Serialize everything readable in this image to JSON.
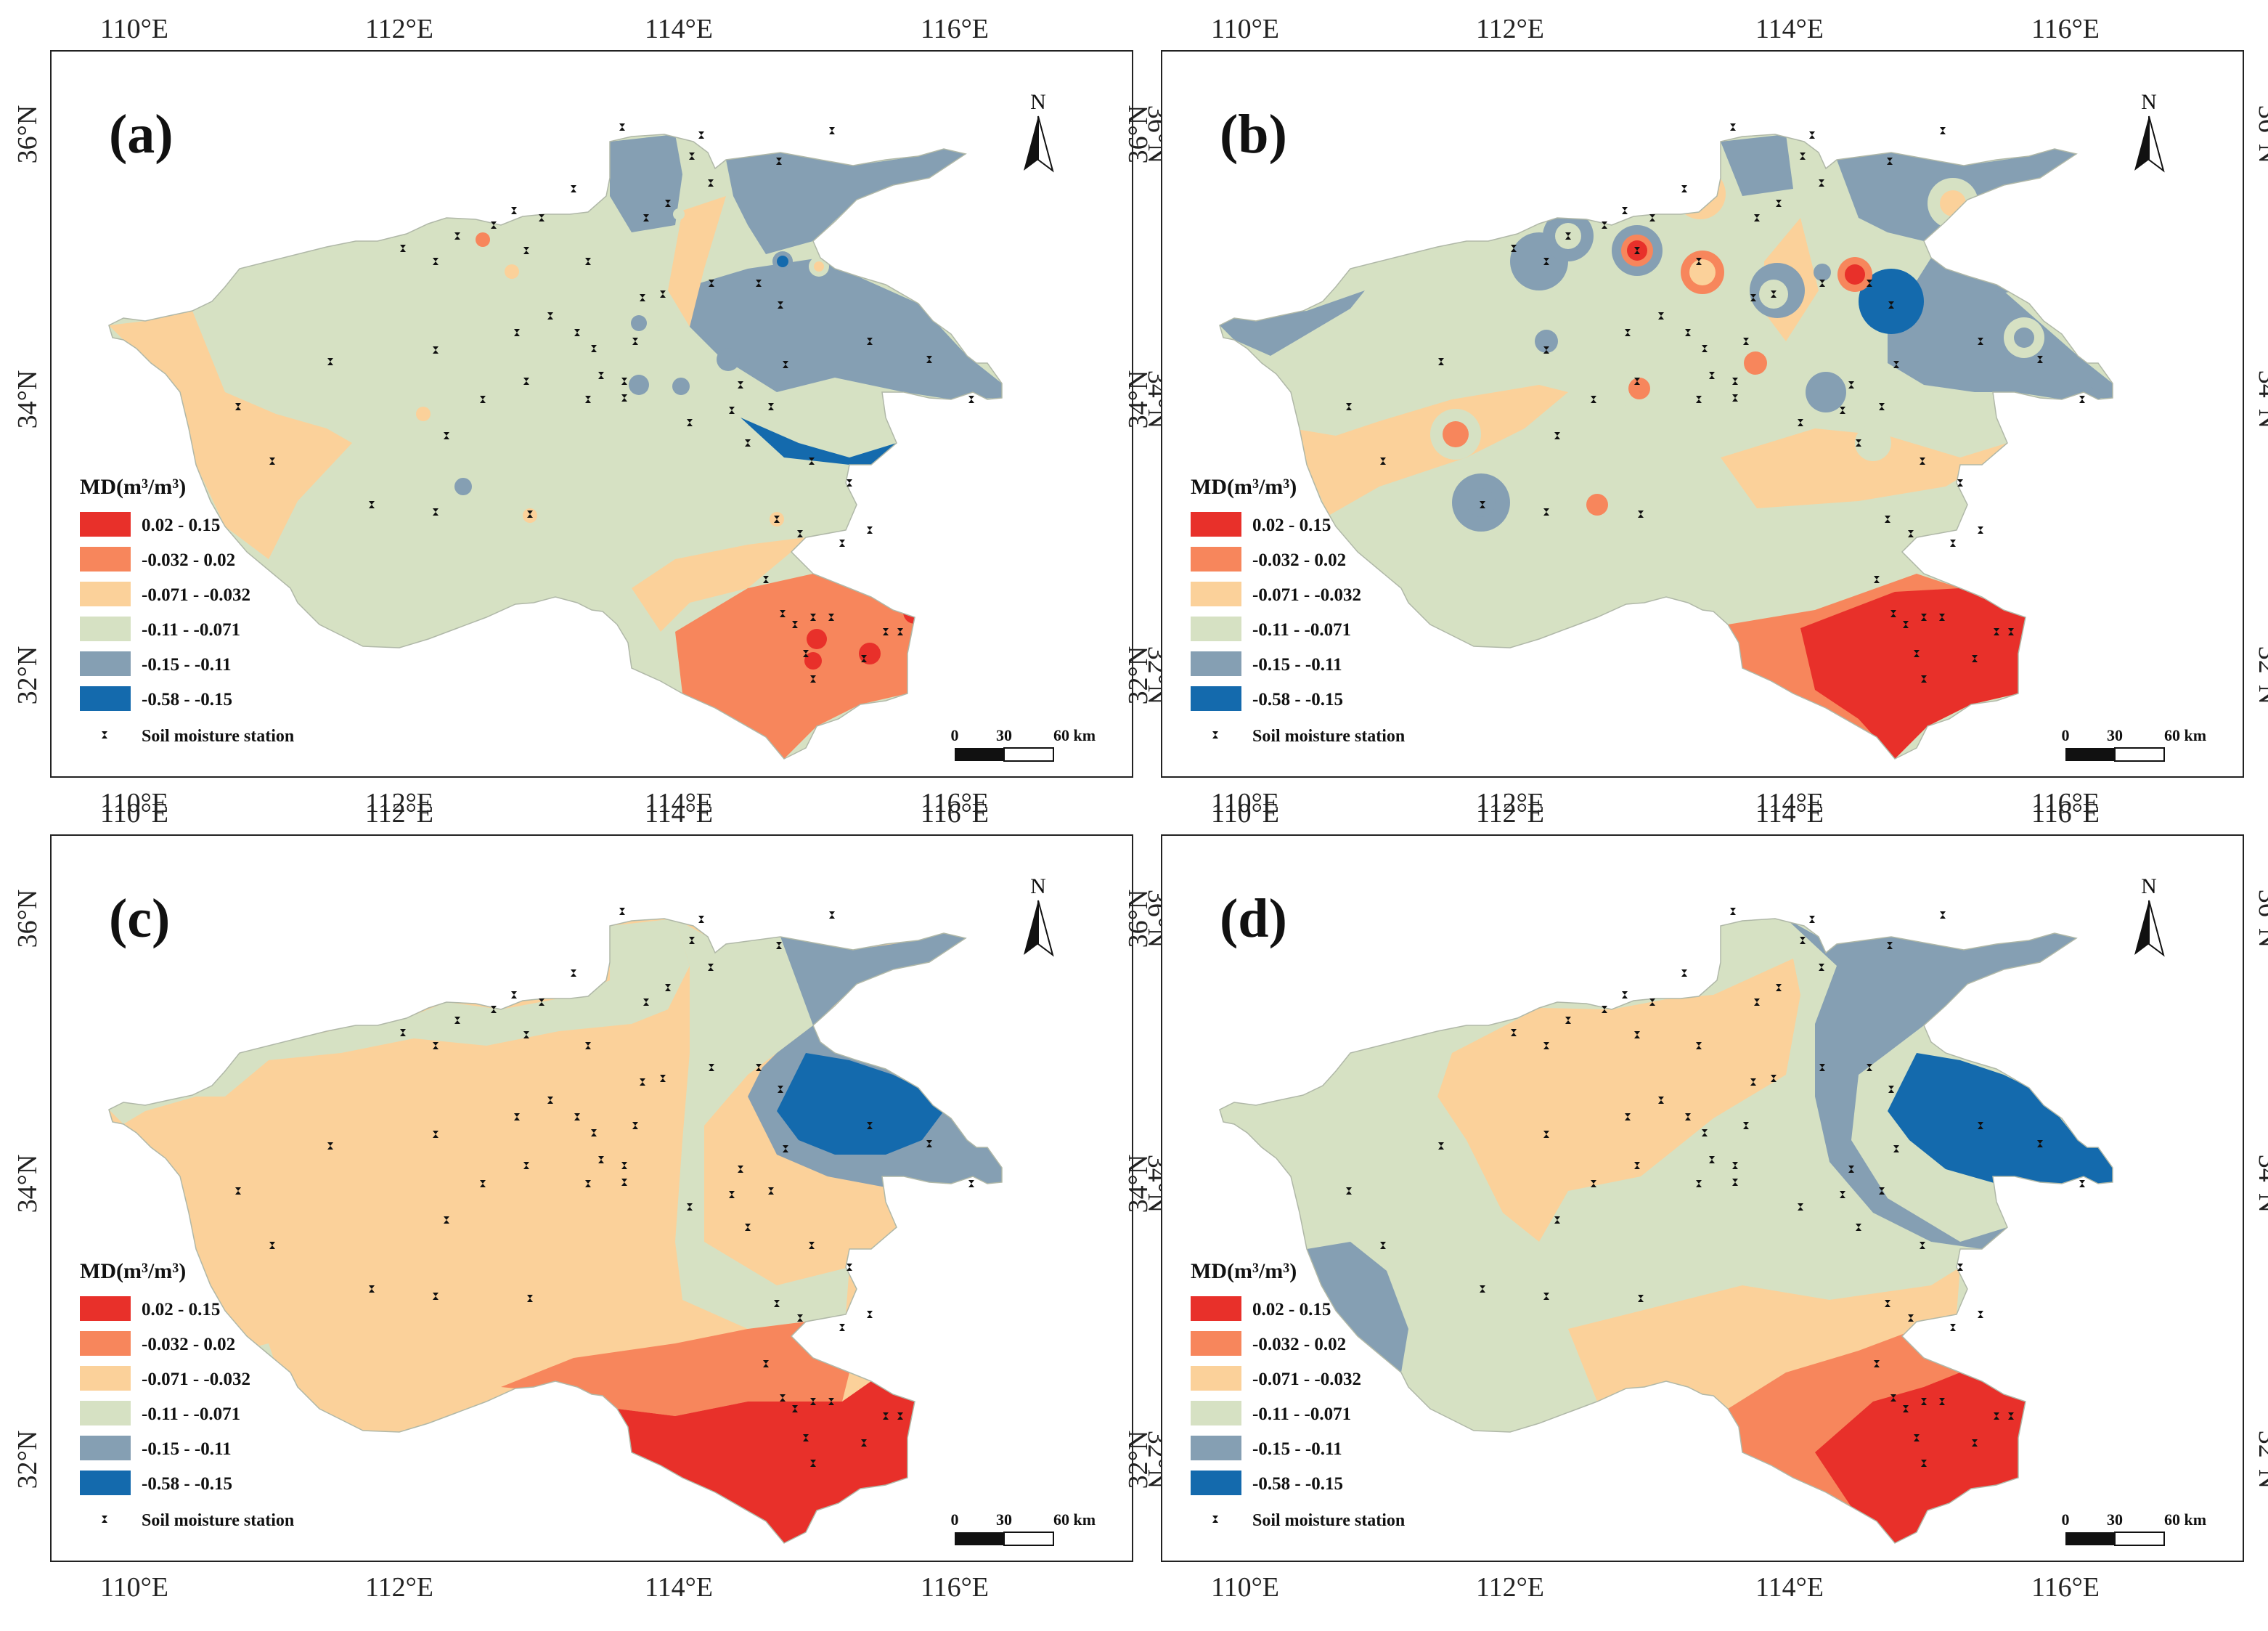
{
  "figure": {
    "axes": {
      "lon_ticks": [
        "110°E",
        "112°E",
        "114°E",
        "116°E"
      ],
      "lat_ticks": [
        "36°N",
        "34°N",
        "32°N"
      ]
    },
    "north_label": "N",
    "legend": {
      "title": "MD(m³/m³)",
      "classes": [
        {
          "label": "0.02 - 0.15",
          "color": "#e8302a"
        },
        {
          "label": "-0.032 - 0.02",
          "color": "#f7865c"
        },
        {
          "label": "-0.071 - -0.032",
          "color": "#fbd19a"
        },
        {
          "label": "-0.11 - -0.071",
          "color": "#d6e1c3"
        },
        {
          "label": "-0.15 - -0.11",
          "color": "#859fb3"
        },
        {
          "label": "-0.58 - -0.15",
          "color": "#146aad"
        }
      ],
      "station_label": "Soil moisture station"
    },
    "scalebar": {
      "labels": [
        "0",
        "30",
        "60 km"
      ]
    },
    "panels": [
      {
        "label": "(a)",
        "has_legend": true
      },
      {
        "label": "(b)",
        "has_legend": true
      },
      {
        "label": "(c)",
        "has_legend": true
      },
      {
        "label": "(d)",
        "has_legend": true
      }
    ]
  }
}
